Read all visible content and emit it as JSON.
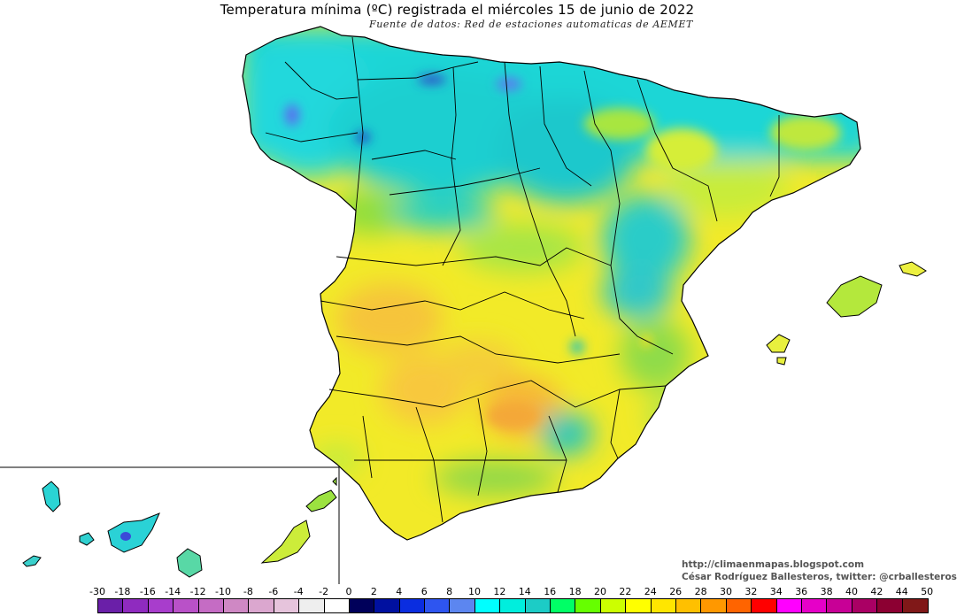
{
  "title": "Temperatura mínima (ºC) registrada el miércoles 15 de junio de 2022",
  "subtitle": "Fuente de datos: Red de estaciones automaticas de AEMET",
  "credits": {
    "blog": "http://climaenmapas.blogspot.com",
    "author": "César Rodríguez Ballesteros, twitter: @crballesteros"
  },
  "legend": {
    "labels": [
      "-30",
      "-18",
      "-16",
      "-14",
      "-12",
      "-10",
      "-8",
      "-6",
      "-4",
      "-2",
      "0",
      "2",
      "4",
      "6",
      "8",
      "10",
      "12",
      "14",
      "16",
      "18",
      "20",
      "22",
      "24",
      "26",
      "28",
      "30",
      "32",
      "34",
      "36",
      "38",
      "40",
      "42",
      "44",
      "50"
    ],
    "colors": [
      "#6a1fa8",
      "#8f2bbf",
      "#a83dcc",
      "#b951c8",
      "#c56cc4",
      "#cf88c4",
      "#dba7cf",
      "#e6c4dc",
      "#eeeeee",
      "#ffffff",
      "#00005a",
      "#0010a0",
      "#0a2de0",
      "#2e55f0",
      "#5c86f0",
      "#00ffff",
      "#00eedd",
      "#1cccc6",
      "#00ff66",
      "#66ff00",
      "#ccff00",
      "#ffff00",
      "#ffe600",
      "#ffc000",
      "#ff9800",
      "#ff6400",
      "#ff0000",
      "#ff00ff",
      "#e600c8",
      "#c80096",
      "#aa0064",
      "#8c0032",
      "#801818"
    ]
  },
  "colors": {
    "cool_north": "#1ed2d2",
    "mild": "#9be23c",
    "warm_interior": "#f5ec2c",
    "hot_spots": "#f8c830",
    "cold_spots": "#3d4fd6",
    "border_lines": "#000000"
  }
}
